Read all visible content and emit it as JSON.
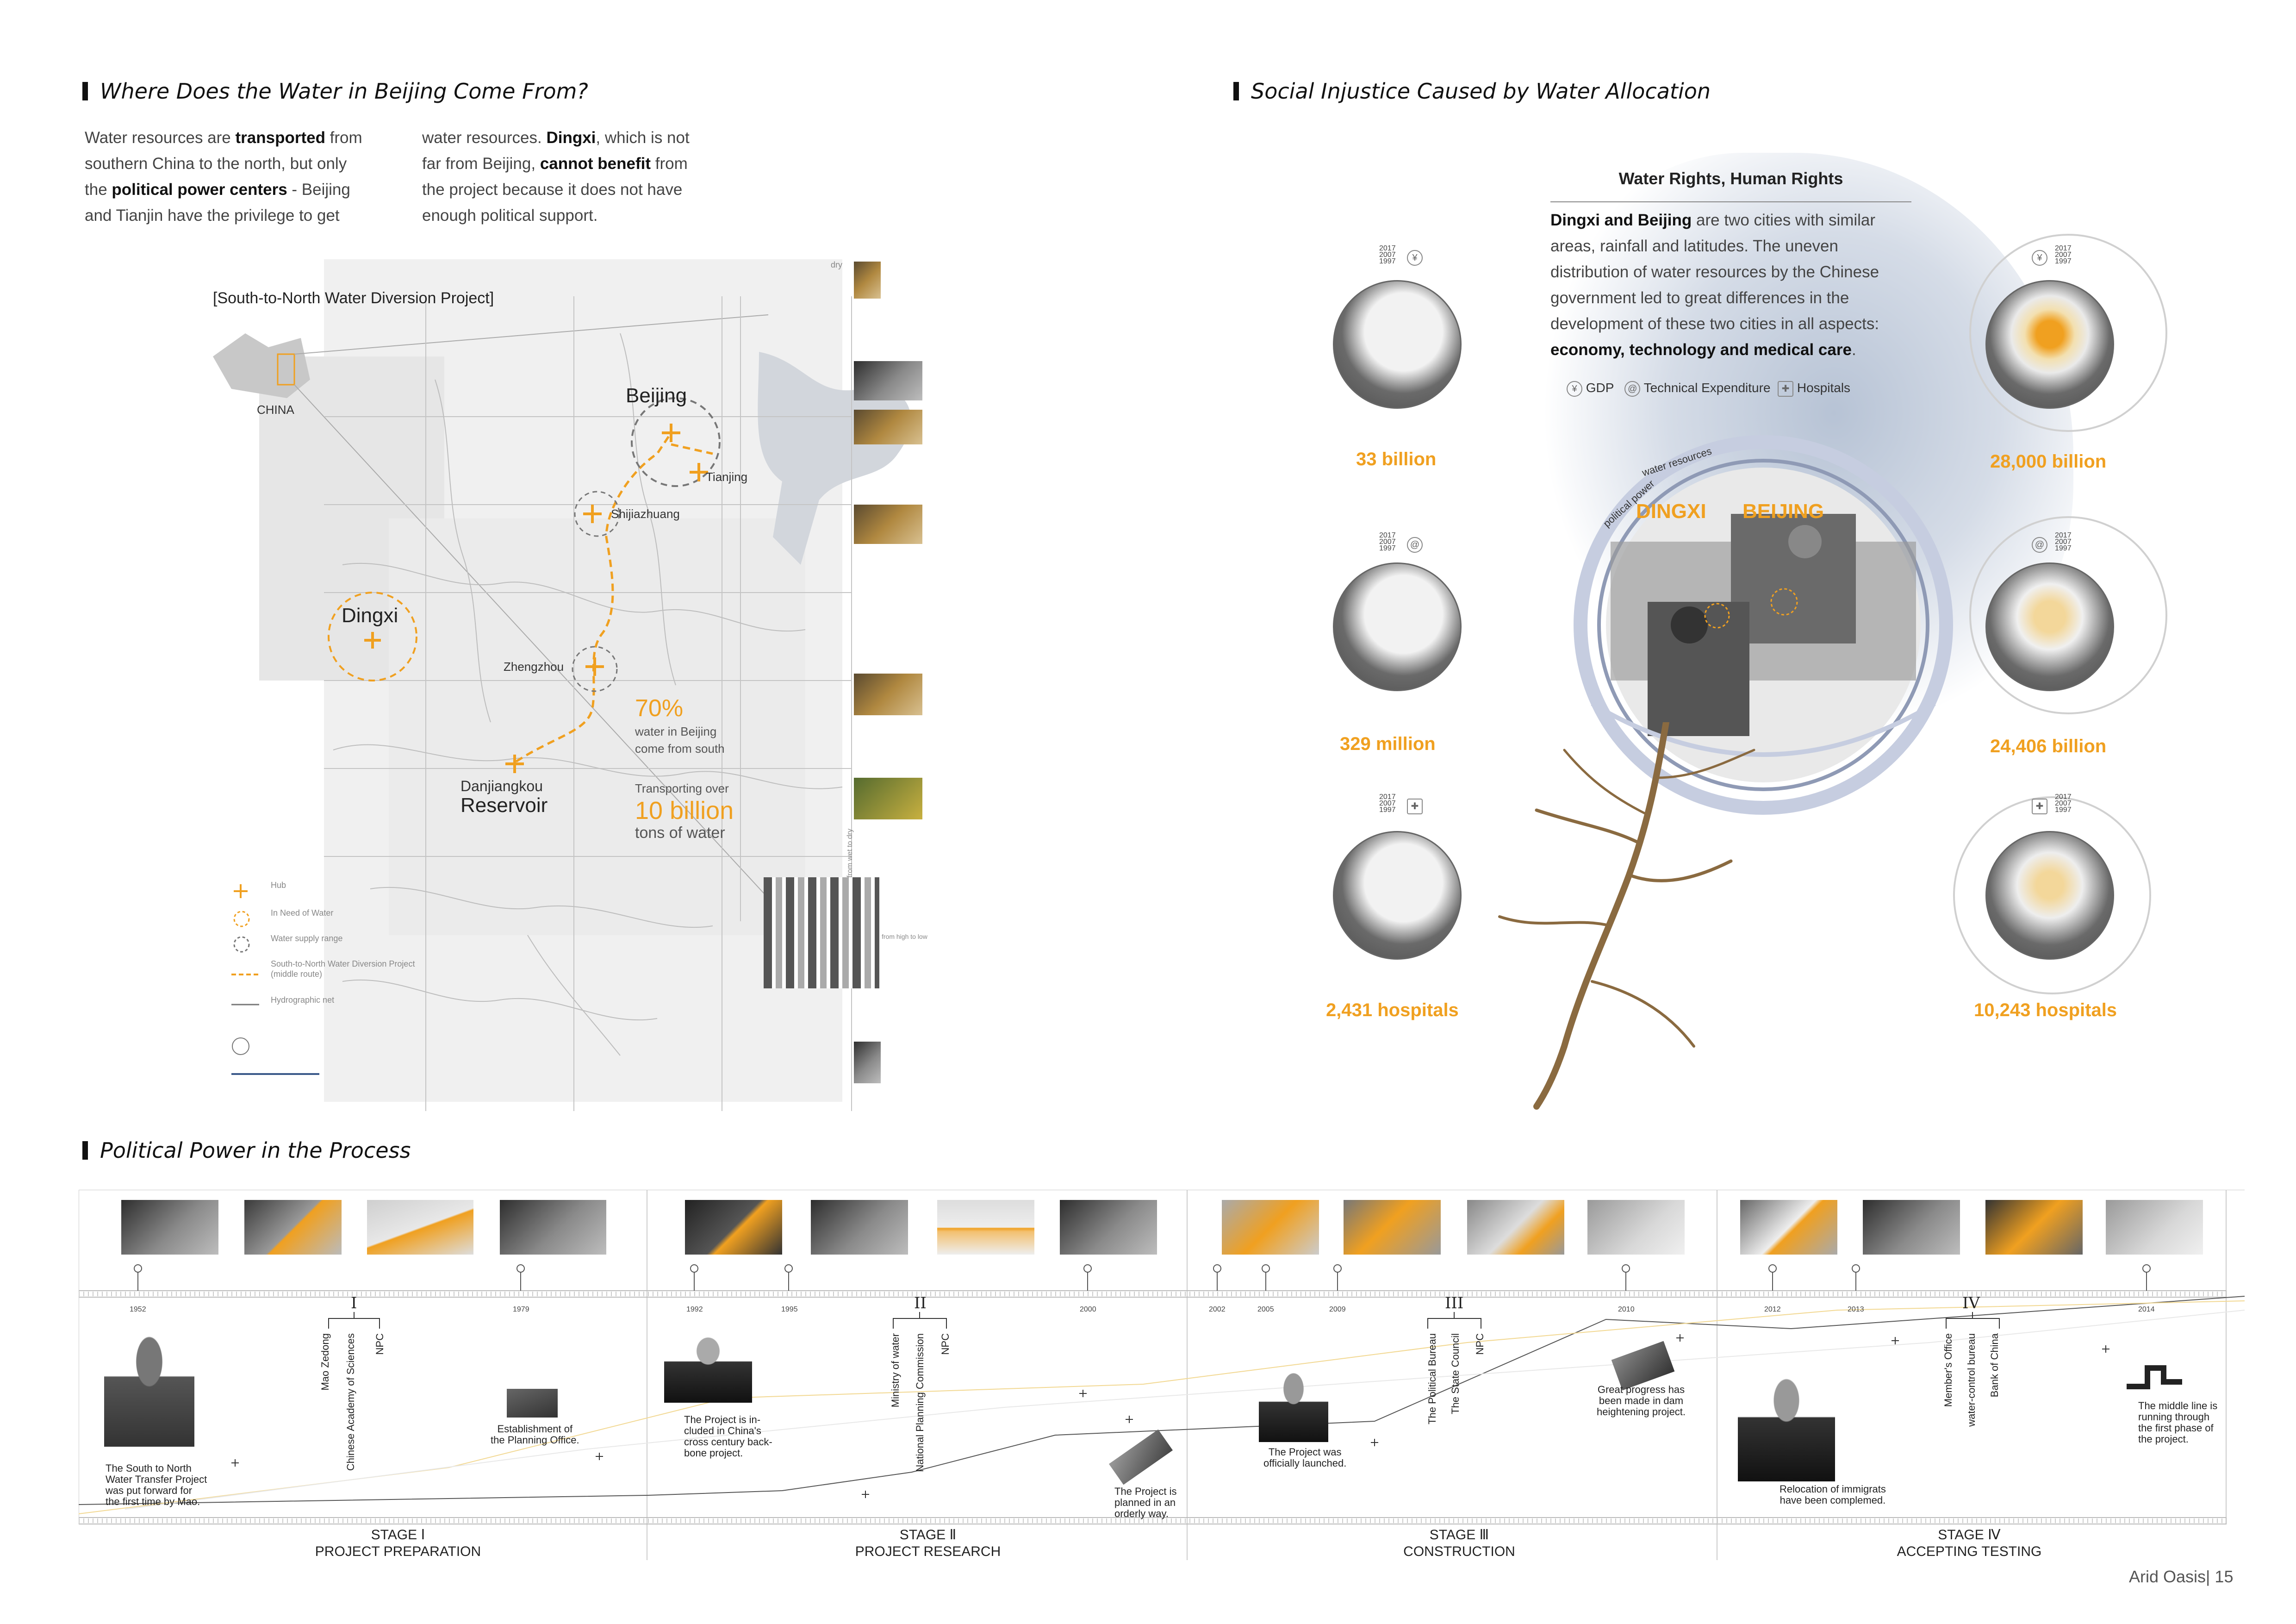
{
  "section1": {
    "title": "Where Does the Water in Beijing Come From?",
    "para_col1": [
      {
        "pre": "Water resources are ",
        "bold": "transported",
        "post": " from"
      },
      {
        "pre": "southern China to the north, but only",
        "bold": "",
        "post": ""
      },
      {
        "pre": "the ",
        "bold": "political power centers",
        "post": " - Beijing"
      },
      {
        "pre": "and Tianjin have the privilege to get",
        "bold": "",
        "post": ""
      }
    ],
    "para_col2": [
      {
        "pre": "water resources. ",
        "bold": "Dingxi",
        "post": ", which is not"
      },
      {
        "pre": "far from Beijing, ",
        "bold": "cannot benefit",
        "post": " from"
      },
      {
        "pre": "the project because it does not have",
        "bold": "",
        "post": ""
      },
      {
        "pre": "enough political support.",
        "bold": "",
        "post": ""
      }
    ],
    "map_title": "[South-to-North Water Diversion Project]",
    "china_label": "CHINA",
    "cities": {
      "beijing": "Beijing",
      "tianjing": "Tianjing",
      "shijiazhuang": "Shijiazhuang",
      "dingxi": "Dingxi",
      "zhengzhou": "Zhengzhou",
      "danjiangkou": "Danjiangkou",
      "reservoir": "Reservoir"
    },
    "stat_percent": "70%",
    "stat_percent_desc1": "water in Beijing",
    "stat_percent_desc2": "come from south",
    "stat_transport": "Transporting over",
    "stat_amount": "10 billion",
    "stat_amount_unit": "tons of water",
    "legend": [
      "Hub",
      "In Need of Water",
      "Water supply range",
      "South-to-North Water Diversion Project",
      "(middle route)",
      "Hydrographic net"
    ],
    "strip_top": "dry",
    "strip_side": "from wet to dry",
    "strip_bottom": "from high to low"
  },
  "section2": {
    "title": "Social Injustice Caused by Water Allocation",
    "box_title": "Water Rights, Human Rights",
    "box_lines": [
      {
        "pre": "",
        "bold": "Dingxi and Beijing",
        "post": " are two cities with similar"
      },
      {
        "pre": "areas, rainfall and latitudes. The uneven",
        "bold": "",
        "post": ""
      },
      {
        "pre": "distribution of water resources by the Chinese",
        "bold": "",
        "post": ""
      },
      {
        "pre": "government led to great differences in the",
        "bold": "",
        "post": ""
      },
      {
        "pre": "development of these two cities in all aspects:",
        "bold": "",
        "post": ""
      },
      {
        "pre": "",
        "bold": "economy, technology and medical care",
        "post": "."
      }
    ],
    "legend_gdp": "GDP",
    "legend_tech": "Technical Expenditure",
    "legend_hosp": "Hospitals",
    "ring_label_water": "water resources",
    "ring_label_power": "political power",
    "dingxi": "DINGXI",
    "beijing": "BEIJING",
    "years": [
      "2017",
      "2007",
      "1997"
    ],
    "dingxi_stats": [
      "33 billion",
      "329 million",
      "2,431 hospitals"
    ],
    "beijing_stats": [
      "28,000 billion",
      "24,406 billion",
      "10,243 hospitals"
    ]
  },
  "section3": {
    "title": "Political Power in the Process",
    "years": [
      "1952",
      "1979",
      "1992",
      "1995",
      "2000",
      "2002",
      "2005",
      "2009",
      "2010",
      "2012",
      "2013",
      "2014"
    ],
    "stages": [
      {
        "roman": "I",
        "stage": "STAGE Ⅰ",
        "name": "PROJECT PREPARATION"
      },
      {
        "roman": "II",
        "stage": "STAGE Ⅱ",
        "name": "PROJECT RESEARCH"
      },
      {
        "roman": "III",
        "stage": "STAGE Ⅲ",
        "name": "CONSTRUCTION"
      },
      {
        "roman": "IV",
        "stage": "STAGE Ⅳ",
        "name": "ACCEPTING TESTING"
      }
    ],
    "actors1": [
      "Mao Zedong",
      "Chinese Academy of Sciences",
      "NPC"
    ],
    "actors2": [
      "Ministry of water",
      "National Planning Commission",
      "NPC"
    ],
    "actors3": [
      "The Political Bureau",
      "The State Council",
      "NPC"
    ],
    "actors4": [
      "Member's Office",
      "water-control bureau",
      "Bank of China"
    ],
    "captions": {
      "c1": [
        "The South to North",
        "Water Transfer Project",
        "was put forward for",
        "the first time by Mao."
      ],
      "c2": [
        "Establishment of",
        "the Planning Office."
      ],
      "c3": [
        "The  Project is in-",
        "cluded in China's",
        "cross century back-",
        "bone project."
      ],
      "c4": [
        "The Project is",
        "planned in an",
        "orderly way."
      ],
      "c5": [
        "The  Project was",
        "officially launched."
      ],
      "c6": [
        "Great progress has",
        "been made in dam",
        "heightening project."
      ],
      "c7": [
        "Relocation of immigrats",
        "have been complemed."
      ],
      "c8": [
        "The middle line is",
        "running through",
        "the first phase of",
        "the project."
      ]
    }
  },
  "footer": {
    "brand": "Arid Oasis",
    "sep": "|",
    "page": "15"
  }
}
